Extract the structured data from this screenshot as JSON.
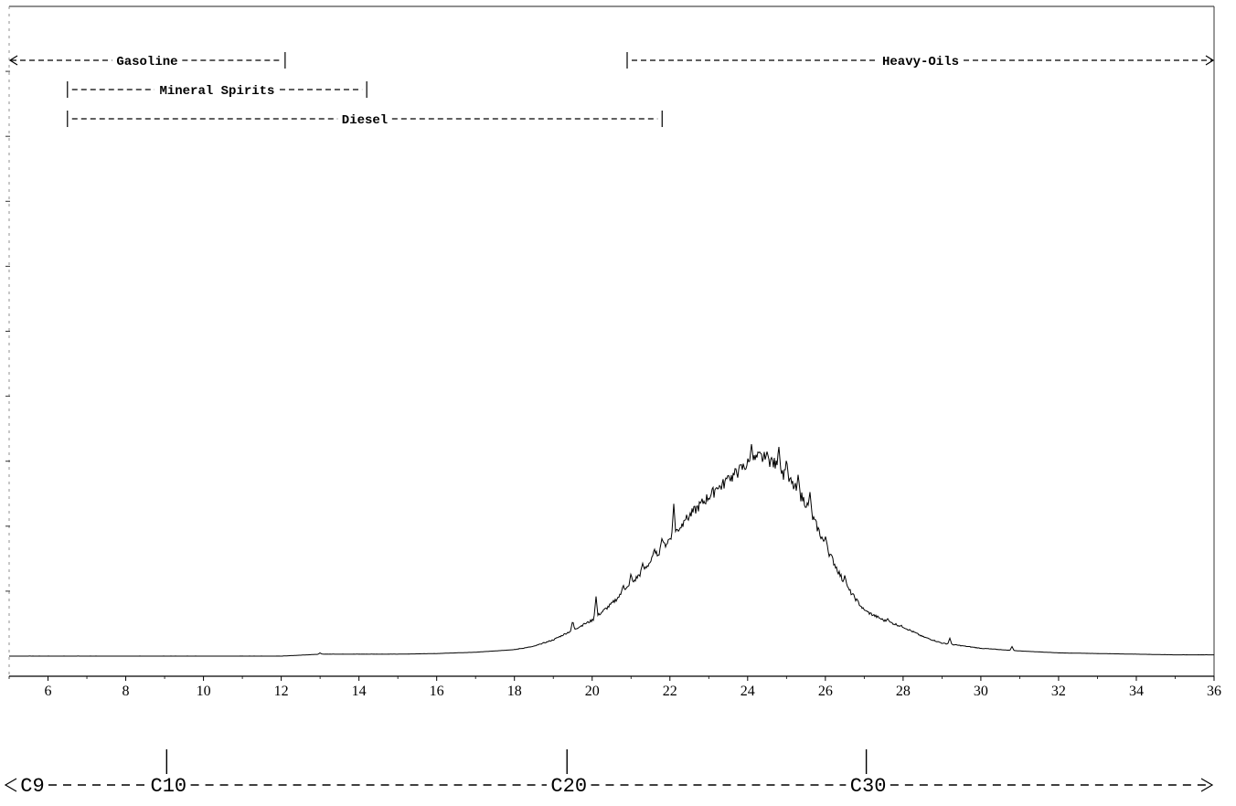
{
  "chart_data": {
    "type": "line",
    "title": "",
    "xlabel": "",
    "ylabel": "",
    "xlim": [
      5,
      36
    ],
    "ylim": [
      0,
      100
    ],
    "grid": false,
    "x_ticks": [
      "6",
      "8",
      "10",
      "12",
      "14",
      "16",
      "18",
      "20",
      "22",
      "24",
      "26",
      "28",
      "30",
      "32",
      "34",
      "36"
    ],
    "series": [
      {
        "x": [
          5,
          6,
          8,
          10,
          12,
          13,
          14,
          15,
          16,
          17,
          18,
          18.5,
          19,
          19.5,
          20,
          20.5,
          21,
          21.5,
          22,
          22.5,
          23,
          23.5,
          24,
          24.3,
          24.6,
          25,
          25.5,
          26,
          26.5,
          27,
          27.5,
          28,
          28.5,
          29,
          30,
          31,
          32,
          33,
          34,
          35,
          36
        ],
        "y": [
          0,
          0,
          0,
          0,
          0,
          0.3,
          0.3,
          0.3,
          0.4,
          0.6,
          1.0,
          1.5,
          2.5,
          4.0,
          5.5,
          8.0,
          11.0,
          14.5,
          18.0,
          21.5,
          24.5,
          27.0,
          29.5,
          30.5,
          30.0,
          27.5,
          23.5,
          17.0,
          11.0,
          7.0,
          5.5,
          4.5,
          3.0,
          2.0,
          1.2,
          0.8,
          0.5,
          0.4,
          0.3,
          0.2,
          0.2
        ]
      }
    ],
    "peaks": [
      {
        "x": 13.0,
        "y": 0.5
      },
      {
        "x": 18.7,
        "y": 1.8
      },
      {
        "x": 19.5,
        "y": 5.5
      },
      {
        "x": 19.8,
        "y": 5.0
      },
      {
        "x": 20.1,
        "y": 9.2
      },
      {
        "x": 20.8,
        "y": 11.0
      },
      {
        "x": 21.0,
        "y": 12.8
      },
      {
        "x": 21.3,
        "y": 14.3
      },
      {
        "x": 21.6,
        "y": 16.6
      },
      {
        "x": 21.8,
        "y": 18.3
      },
      {
        "x": 22.1,
        "y": 23.5
      },
      {
        "x": 22.4,
        "y": 21.0
      },
      {
        "x": 22.8,
        "y": 23.5
      },
      {
        "x": 23.2,
        "y": 26.0
      },
      {
        "x": 23.5,
        "y": 28.0
      },
      {
        "x": 23.8,
        "y": 29.0
      },
      {
        "x": 24.1,
        "y": 32.7
      },
      {
        "x": 24.3,
        "y": 31.5
      },
      {
        "x": 24.5,
        "y": 31.5
      },
      {
        "x": 24.8,
        "y": 32.5
      },
      {
        "x": 25.0,
        "y": 30.5
      },
      {
        "x": 25.3,
        "y": 28.0
      },
      {
        "x": 25.6,
        "y": 25.5
      },
      {
        "x": 26.0,
        "y": 18.5
      },
      {
        "x": 26.5,
        "y": 12.5
      },
      {
        "x": 27.0,
        "y": 7.0
      },
      {
        "x": 27.6,
        "y": 5.8
      },
      {
        "x": 29.2,
        "y": 2.8
      },
      {
        "x": 30.8,
        "y": 1.5
      }
    ],
    "ranges": [
      {
        "label": "Gasoline",
        "start": 5,
        "end": 12.1,
        "row": 0,
        "arrow_left": true,
        "arrow_right": false
      },
      {
        "label": "Heavy-Oils",
        "start": 20.9,
        "end": 36,
        "row": 0,
        "arrow_left": false,
        "arrow_right": true
      },
      {
        "label": "Mineral Spirits",
        "start": 6.5,
        "end": 14.2,
        "row": 1,
        "arrow_left": false,
        "arrow_right": false
      },
      {
        "label": "Diesel",
        "start": 6.5,
        "end": 21.8,
        "row": 2,
        "arrow_left": false,
        "arrow_right": false
      }
    ],
    "carbon_markers": [
      {
        "label": "C9",
        "x": 5,
        "marker": false
      },
      {
        "label": "C10",
        "x": 9.1,
        "marker": true
      },
      {
        "label": "C20",
        "x": 19.4,
        "marker": true
      },
      {
        "label": "C30",
        "x": 27.1,
        "marker": true
      }
    ]
  }
}
